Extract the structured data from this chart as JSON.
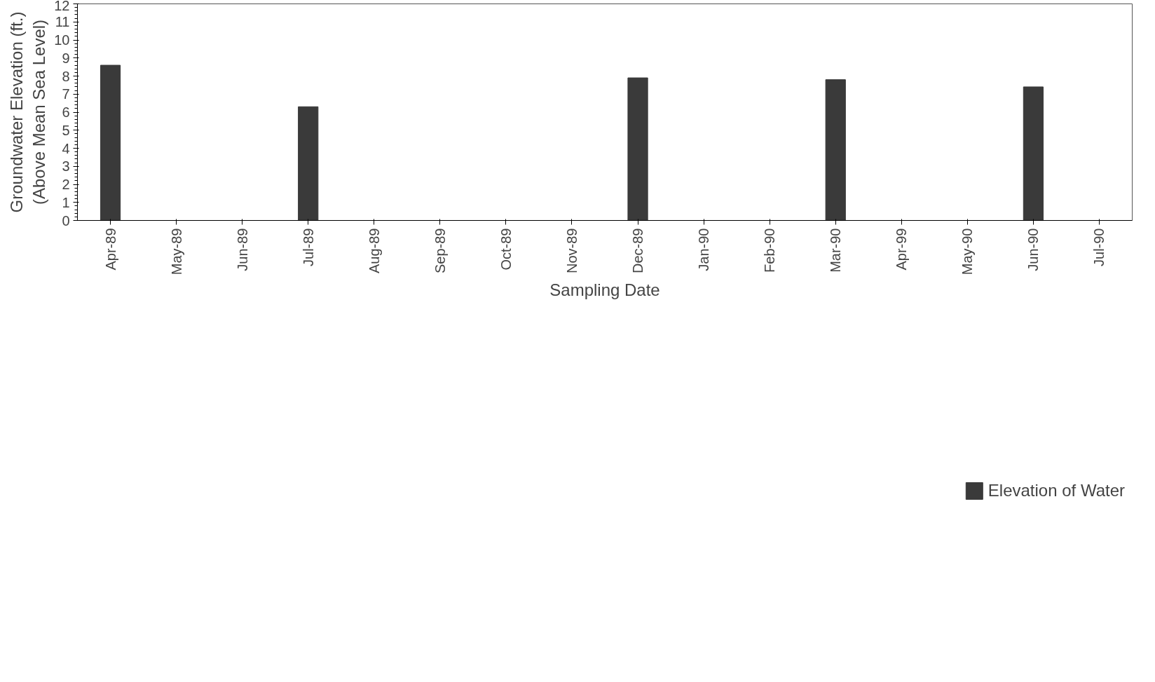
{
  "chart_data": {
    "type": "bar",
    "xlabel": "Sampling Date",
    "ylabel": "Groundwater Elevation (ft.)\n(Above Mean Sea Level)",
    "categories": [
      "Apr-89",
      "May-89",
      "Jun-89",
      "Jul-89",
      "Aug-89",
      "Sep-89",
      "Oct-89",
      "Nov-89",
      "Dec-89",
      "Jan-90",
      "Feb-90",
      "Mar-90",
      "Apr-99",
      "May-90",
      "Jun-90",
      "Jul-90"
    ],
    "series": [
      {
        "name": "Elevation of Water",
        "color": "#3a3a3a",
        "values": [
          8.6,
          null,
          null,
          6.3,
          null,
          null,
          null,
          null,
          7.9,
          null,
          null,
          7.8,
          null,
          null,
          7.4,
          null
        ]
      }
    ],
    "ylim": [
      0,
      12
    ],
    "yticks": [
      0,
      1,
      2,
      3,
      4,
      5,
      6,
      7,
      8,
      9,
      10,
      11,
      12
    ],
    "grid": false,
    "legend": "bottom"
  }
}
